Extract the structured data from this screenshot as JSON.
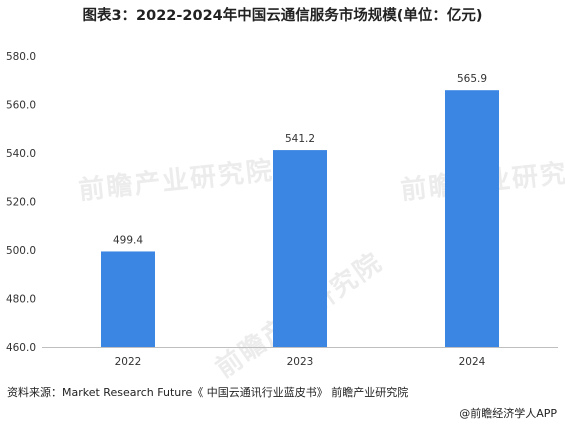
{
  "title": "图表3：2022-2024年中国云通信服务市场规模(单位：亿元)",
  "source": "资料来源：Market Research Future《 中国云通讯行业蓝皮书》 前瞻产业研究院",
  "credit": "@前瞻经济学人APP",
  "watermark": "前瞻产业研究院",
  "colors": {
    "bar": "#3a86e2",
    "axis": "#bfbfbf",
    "text": "#333333"
  },
  "chart_data": {
    "type": "bar",
    "categories": [
      "2022",
      "2023",
      "2024"
    ],
    "values": [
      499.4,
      541.2,
      565.9
    ],
    "value_labels": [
      "499.4",
      "541.2",
      "565.9"
    ],
    "ylim": [
      460,
      580
    ],
    "yticks": [
      "460.0",
      "480.0",
      "500.0",
      "520.0",
      "540.0",
      "560.0",
      "580.0"
    ],
    "grid": false
  }
}
